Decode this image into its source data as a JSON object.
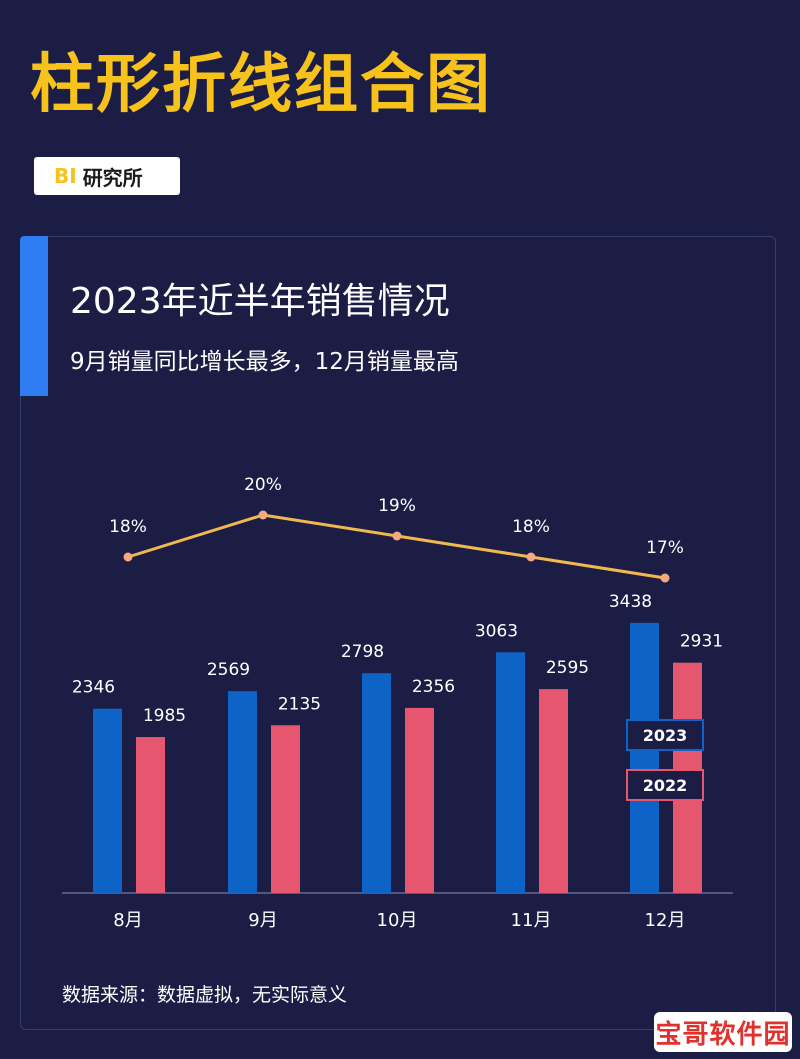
{
  "header": {
    "main_title": "柱形折线组合图",
    "badge_bi": "BI",
    "badge_text": "研究所"
  },
  "source_note": "数据来源：数据虚拟，无实际意义",
  "watermark": "宝哥软件园",
  "colors": {
    "series_2023": "#0e63c6",
    "series_2022": "#e7566f",
    "line": "#f1b84e",
    "axis": "#8b8fb5"
  },
  "chart_data": {
    "type": "bar",
    "title": "2023年近半年销售情况",
    "subtitle": "9月销量同比增长最多，12月销量最高",
    "categories": [
      "8月",
      "9月",
      "10月",
      "11月",
      "12月"
    ],
    "series": [
      {
        "name": "2023",
        "values": [
          2346,
          2569,
          2798,
          3063,
          3438
        ]
      },
      {
        "name": "2022",
        "values": [
          1985,
          2135,
          2356,
          2595,
          2931
        ]
      }
    ],
    "line_series": {
      "type": "line",
      "labels": [
        "18%",
        "20%",
        "19%",
        "18%",
        "17%"
      ],
      "values": [
        18,
        20,
        19,
        18,
        17
      ]
    },
    "ylim": [
      0,
      3500
    ],
    "grid": false,
    "legend": "inside-right"
  }
}
